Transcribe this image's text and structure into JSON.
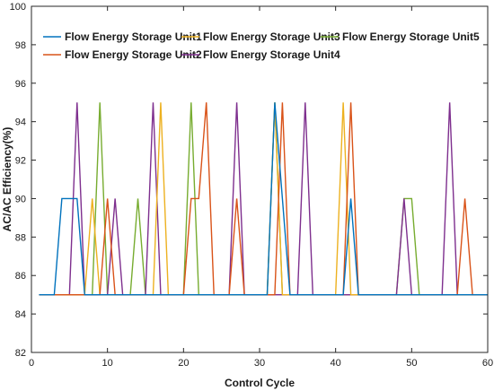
{
  "chart_data": {
    "type": "line",
    "title": "",
    "xlabel": "Control Cycle",
    "ylabel": "AC/AC Efficiency(%)",
    "xlim": [
      0,
      60
    ],
    "ylim": [
      82,
      100
    ],
    "xticks": [
      0,
      10,
      20,
      30,
      40,
      50,
      60
    ],
    "yticks": [
      82,
      84,
      86,
      88,
      90,
      92,
      94,
      96,
      98,
      100
    ],
    "grid": false,
    "legend_position": "top-left",
    "series": [
      {
        "name": "Flow Energy Storage Unit1",
        "color": "#0072BD",
        "x": [
          1,
          2,
          3,
          4,
          5,
          6,
          7,
          8,
          9,
          10,
          11,
          12,
          13,
          14,
          15,
          16,
          17,
          18,
          19,
          20,
          21,
          22,
          23,
          24,
          25,
          26,
          27,
          28,
          29,
          30,
          31,
          32,
          33,
          34,
          35,
          36,
          37,
          38,
          39,
          40,
          41,
          42,
          43,
          44,
          45,
          46,
          47,
          48,
          49,
          50,
          51,
          52,
          53,
          54,
          55,
          56,
          57,
          58,
          59,
          60
        ],
        "values": [
          85,
          85,
          85,
          90,
          90,
          90,
          85,
          85,
          85,
          85,
          85,
          85,
          85,
          85,
          85,
          85,
          85,
          85,
          85,
          85,
          85,
          85,
          85,
          85,
          85,
          85,
          85,
          85,
          85,
          85,
          85,
          95,
          90,
          85,
          85,
          85,
          85,
          85,
          85,
          85,
          85,
          90,
          85,
          85,
          85,
          85,
          85,
          85,
          85,
          85,
          85,
          85,
          85,
          85,
          85,
          85,
          85,
          85,
          85,
          85
        ]
      },
      {
        "name": "Flow Energy Storage Unit2",
        "color": "#D95319",
        "x": [
          1,
          2,
          3,
          4,
          5,
          6,
          7,
          8,
          9,
          10,
          11,
          12,
          13,
          14,
          15,
          16,
          17,
          18,
          19,
          20,
          21,
          22,
          23,
          24,
          25,
          26,
          27,
          28,
          29,
          30,
          31,
          32,
          33,
          34,
          35,
          36,
          37,
          38,
          39,
          40,
          41,
          42,
          43,
          44,
          45,
          46,
          47,
          48,
          49,
          50,
          51,
          52,
          53,
          54,
          55,
          56,
          57,
          58,
          59,
          60
        ],
        "values": [
          85,
          85,
          85,
          85,
          85,
          85,
          85,
          85,
          85,
          90,
          85,
          85,
          85,
          85,
          85,
          85,
          85,
          85,
          85,
          85,
          90,
          90,
          95,
          85,
          85,
          85,
          90,
          85,
          85,
          85,
          85,
          85,
          95,
          85,
          85,
          85,
          85,
          85,
          85,
          85,
          85,
          95,
          85,
          85,
          85,
          85,
          85,
          85,
          85,
          85,
          85,
          85,
          85,
          85,
          85,
          85,
          90,
          85,
          85,
          85
        ]
      },
      {
        "name": "Flow Energy Storage Unit3",
        "color": "#EDB120",
        "x": [
          1,
          2,
          3,
          4,
          5,
          6,
          7,
          8,
          9,
          10,
          11,
          12,
          13,
          14,
          15,
          16,
          17,
          18,
          19,
          20,
          21,
          22,
          23,
          24,
          25,
          26,
          27,
          28,
          29,
          30,
          31,
          32,
          33,
          34,
          35,
          36,
          37,
          38,
          39,
          40,
          41,
          42,
          43,
          44,
          45,
          46,
          47,
          48,
          49,
          50,
          51,
          52,
          53,
          54,
          55,
          56,
          57,
          58,
          59,
          60
        ],
        "values": [
          85,
          85,
          85,
          85,
          85,
          85,
          85,
          90,
          85,
          85,
          85,
          85,
          85,
          85,
          85,
          85,
          95,
          85,
          85,
          85,
          85,
          85,
          85,
          85,
          85,
          85,
          85,
          85,
          85,
          85,
          85,
          95,
          85,
          85,
          85,
          85,
          85,
          85,
          85,
          85,
          95,
          85,
          85,
          85,
          85,
          85,
          85,
          85,
          85,
          85,
          85,
          85,
          85,
          85,
          85,
          85,
          85,
          85,
          85,
          85
        ]
      },
      {
        "name": "Flow Energy Storage Unit4",
        "color": "#7E2F8E",
        "x": [
          1,
          2,
          3,
          4,
          5,
          6,
          7,
          8,
          9,
          10,
          11,
          12,
          13,
          14,
          15,
          16,
          17,
          18,
          19,
          20,
          21,
          22,
          23,
          24,
          25,
          26,
          27,
          28,
          29,
          30,
          31,
          32,
          33,
          34,
          35,
          36,
          37,
          38,
          39,
          40,
          41,
          42,
          43,
          44,
          45,
          46,
          47,
          48,
          49,
          50,
          51,
          52,
          53,
          54,
          55,
          56,
          57,
          58,
          59,
          60
        ],
        "values": [
          85,
          85,
          85,
          85,
          85,
          95,
          85,
          85,
          85,
          85,
          90,
          85,
          85,
          85,
          85,
          95,
          85,
          85,
          85,
          85,
          85,
          85,
          85,
          85,
          85,
          85,
          95,
          85,
          85,
          85,
          85,
          85,
          85,
          85,
          85,
          95,
          85,
          85,
          85,
          85,
          85,
          85,
          85,
          85,
          85,
          85,
          85,
          85,
          90,
          85,
          85,
          85,
          85,
          85,
          95,
          85,
          85,
          85,
          85,
          85
        ]
      },
      {
        "name": "Flow Energy Storage Unit5",
        "color": "#77AC30",
        "x": [
          1,
          2,
          3,
          4,
          5,
          6,
          7,
          8,
          9,
          10,
          11,
          12,
          13,
          14,
          15,
          16,
          17,
          18,
          19,
          20,
          21,
          22,
          23,
          24,
          25,
          26,
          27,
          28,
          29,
          30,
          31,
          32,
          33,
          34,
          35,
          36,
          37,
          38,
          39,
          40,
          41,
          42,
          43,
          44,
          45,
          46,
          47,
          48,
          49,
          50,
          51,
          52,
          53,
          54,
          55,
          56,
          57,
          58,
          59,
          60
        ],
        "values": [
          85,
          85,
          85,
          85,
          85,
          85,
          85,
          85,
          95,
          85,
          85,
          85,
          85,
          90,
          85,
          85,
          85,
          85,
          85,
          85,
          95,
          85,
          85,
          85,
          85,
          85,
          85,
          85,
          85,
          85,
          85,
          95,
          85,
          85,
          85,
          85,
          85,
          85,
          85,
          85,
          85,
          85,
          85,
          85,
          85,
          85,
          85,
          85,
          90,
          90,
          85,
          85,
          85,
          85,
          85,
          85,
          85,
          85,
          85,
          85
        ]
      }
    ]
  }
}
